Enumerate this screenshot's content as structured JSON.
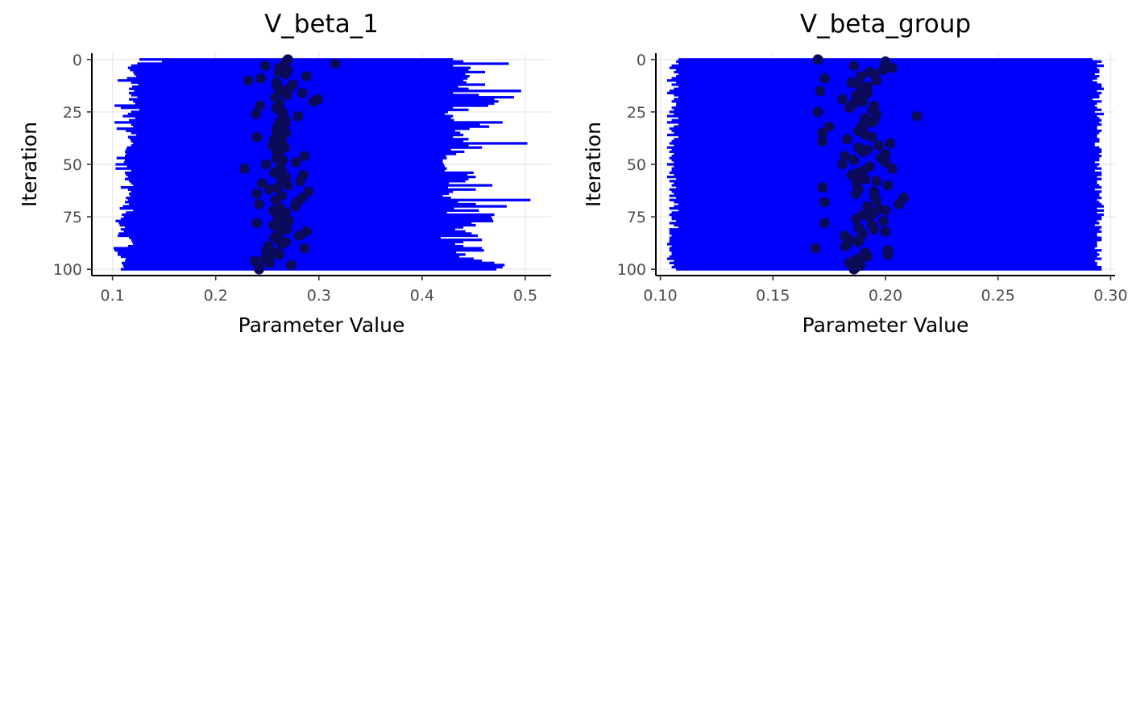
{
  "chart_data": [
    {
      "type": "scatter",
      "title": "V_beta_1",
      "xlabel": "Parameter Value",
      "ylabel": "Iteration",
      "xlim": [
        0.08,
        0.525
      ],
      "ylim": [
        -3,
        103
      ],
      "y_reversed": true,
      "x_ticks": [
        0.1,
        0.2,
        0.3,
        0.4,
        0.5
      ],
      "x_tick_labels": [
        "0.1",
        "0.2",
        "0.3",
        "0.4",
        "0.5"
      ],
      "y_ticks": [
        0,
        25,
        50,
        75,
        100
      ],
      "y_tick_labels": [
        "0",
        "25",
        "50",
        "75",
        "100"
      ],
      "grid": true,
      "interval_color": "#0000ff",
      "point_color": "#0b0b5a",
      "x": [
        0.27,
        0.268,
        0.316,
        0.248,
        0.262,
        0.27,
        0.261,
        0.268,
        0.288,
        0.244,
        0.232,
        0.259,
        0.275,
        0.26,
        0.271,
        0.264,
        0.284,
        0.269,
        0.258,
        0.299,
        0.295,
        0.262,
        0.243,
        0.259,
        0.261,
        0.265,
        0.239,
        0.28,
        0.265,
        0.268,
        0.262,
        0.267,
        0.26,
        0.264,
        0.259,
        0.268,
        0.265,
        0.24,
        0.257,
        0.264,
        0.26,
        0.255,
        0.267,
        0.263,
        0.259,
        0.26,
        0.286,
        0.259,
        0.265,
        0.278,
        0.249,
        0.263,
        0.228,
        0.264,
        0.257,
        0.285,
        0.268,
        0.264,
        0.282,
        0.245,
        0.27,
        0.26,
        0.252,
        0.29,
        0.24,
        0.264,
        0.284,
        0.258,
        0.279,
        0.242,
        0.277,
        0.263,
        0.256,
        0.268,
        0.263,
        0.26,
        0.262,
        0.271,
        0.24,
        0.256,
        0.262,
        0.269,
        0.288,
        0.261,
        0.281,
        0.257,
        0.261,
        0.268,
        0.264,
        0.251,
        0.286,
        0.249,
        0.258,
        0.262,
        0.253,
        0.248,
        0.238,
        0.252,
        0.273,
        0.242,
        0.242
      ],
      "low": [
        0.126,
        0.148,
        0.124,
        0.118,
        0.115,
        0.117,
        0.12,
        0.121,
        0.123,
        0.114,
        0.105,
        0.118,
        0.125,
        0.119,
        0.116,
        0.121,
        0.116,
        0.118,
        0.124,
        0.116,
        0.12,
        0.122,
        0.102,
        0.108,
        0.126,
        0.118,
        0.115,
        0.11,
        0.122,
        0.116,
        0.102,
        0.118,
        0.12,
        0.104,
        0.113,
        0.118,
        0.123,
        0.115,
        0.117,
        0.118,
        0.12,
        0.118,
        0.114,
        0.113,
        0.112,
        0.113,
        0.112,
        0.104,
        0.112,
        0.111,
        0.103,
        0.114,
        0.103,
        0.118,
        0.112,
        0.113,
        0.115,
        0.112,
        0.116,
        0.118,
        0.12,
        0.108,
        0.115,
        0.118,
        0.116,
        0.117,
        0.113,
        0.115,
        0.112,
        0.116,
        0.11,
        0.107,
        0.12,
        0.113,
        0.109,
        0.111,
        0.108,
        0.103,
        0.106,
        0.107,
        0.112,
        0.108,
        0.111,
        0.106,
        0.105,
        0.116,
        0.118,
        0.119,
        0.12,
        0.115,
        0.101,
        0.102,
        0.105,
        0.105,
        0.108,
        0.113,
        0.112,
        0.109,
        0.11,
        0.111,
        0.108
      ],
      "high": [
        0.43,
        0.44,
        0.484,
        0.43,
        0.447,
        0.445,
        0.461,
        0.442,
        0.446,
        0.444,
        0.44,
        0.443,
        0.461,
        0.435,
        0.445,
        0.496,
        0.43,
        0.455,
        0.489,
        0.47,
        0.474,
        0.47,
        0.464,
        0.43,
        0.445,
        0.425,
        0.422,
        0.43,
        0.428,
        0.431,
        0.478,
        0.456,
        0.465,
        0.446,
        0.432,
        0.437,
        0.44,
        0.43,
        0.445,
        0.44,
        0.502,
        0.445,
        0.458,
        0.428,
        0.441,
        0.433,
        0.423,
        0.424,
        0.42,
        0.42,
        0.421,
        0.422,
        0.424,
        0.422,
        0.45,
        0.444,
        0.452,
        0.445,
        0.442,
        0.426,
        0.468,
        0.425,
        0.452,
        0.43,
        0.426,
        0.42,
        0.428,
        0.505,
        0.435,
        0.452,
        0.482,
        0.431,
        0.455,
        0.424,
        0.47,
        0.467,
        0.468,
        0.469,
        0.448,
        0.452,
        0.44,
        0.432,
        0.442,
        0.448,
        0.454,
        0.418,
        0.458,
        0.44,
        0.432,
        0.44,
        0.458,
        0.46,
        0.433,
        0.442,
        0.436,
        0.45,
        0.458,
        0.47,
        0.48,
        0.478,
        0.472
      ]
    },
    {
      "type": "scatter",
      "title": "V_beta_group",
      "xlabel": "Parameter Value",
      "ylabel": "Iteration",
      "xlim": [
        0.098,
        0.302
      ],
      "ylim": [
        -3,
        103
      ],
      "y_reversed": true,
      "x_ticks": [
        0.1,
        0.15,
        0.2,
        0.25,
        0.3
      ],
      "x_tick_labels": [
        "0.10",
        "0.15",
        "0.20",
        "0.25",
        "0.30"
      ],
      "y_ticks": [
        0,
        25,
        50,
        75,
        100
      ],
      "y_tick_labels": [
        "0",
        "25",
        "50",
        "75",
        "100"
      ],
      "grid": true,
      "interval_color": "#0000ff",
      "point_color": "#0b0b5a",
      "x": [
        0.17,
        0.2,
        0.2,
        0.186,
        0.203,
        0.199,
        0.193,
        0.195,
        0.189,
        0.173,
        0.196,
        0.185,
        0.188,
        0.192,
        0.19,
        0.171,
        0.192,
        0.187,
        0.19,
        0.181,
        0.19,
        0.186,
        0.195,
        0.184,
        0.194,
        0.17,
        0.196,
        0.214,
        0.191,
        0.195,
        0.194,
        0.19,
        0.175,
        0.19,
        0.188,
        0.172,
        0.191,
        0.194,
        0.183,
        0.172,
        0.202,
        0.197,
        0.188,
        0.192,
        0.19,
        0.2,
        0.182,
        0.198,
        0.186,
        0.2,
        0.181,
        0.193,
        0.203,
        0.19,
        0.188,
        0.185,
        0.188,
        0.191,
        0.196,
        0.187,
        0.201,
        0.172,
        0.188,
        0.195,
        0.187,
        0.195,
        0.208,
        0.196,
        0.173,
        0.206,
        0.192,
        0.197,
        0.2,
        0.195,
        0.19,
        0.193,
        0.187,
        0.199,
        0.173,
        0.194,
        0.188,
        0.195,
        0.2,
        0.19,
        0.182,
        0.189,
        0.184,
        0.188,
        0.183,
        0.182,
        0.169,
        0.201,
        0.191,
        0.201,
        0.192,
        0.188,
        0.186,
        0.184,
        0.189,
        0.187,
        0.186
      ],
      "low": [
        0.108,
        0.107,
        0.108,
        0.105,
        0.104,
        0.107,
        0.106,
        0.108,
        0.107,
        0.105,
        0.103,
        0.107,
        0.105,
        0.108,
        0.106,
        0.104,
        0.103,
        0.106,
        0.108,
        0.106,
        0.105,
        0.107,
        0.107,
        0.105,
        0.106,
        0.104,
        0.106,
        0.103,
        0.108,
        0.105,
        0.103,
        0.108,
        0.106,
        0.104,
        0.105,
        0.106,
        0.103,
        0.108,
        0.106,
        0.105,
        0.104,
        0.106,
        0.103,
        0.105,
        0.104,
        0.106,
        0.105,
        0.104,
        0.105,
        0.106,
        0.103,
        0.106,
        0.105,
        0.105,
        0.104,
        0.106,
        0.103,
        0.107,
        0.104,
        0.106,
        0.105,
        0.107,
        0.104,
        0.105,
        0.106,
        0.104,
        0.107,
        0.104,
        0.106,
        0.108,
        0.106,
        0.104,
        0.108,
        0.105,
        0.104,
        0.105,
        0.105,
        0.107,
        0.104,
        0.106,
        0.108,
        0.104,
        0.104,
        0.104,
        0.105,
        0.104,
        0.104,
        0.104,
        0.103,
        0.105,
        0.104,
        0.104,
        0.105,
        0.105,
        0.104,
        0.103,
        0.106,
        0.104,
        0.106,
        0.105,
        0.107
      ],
      "high": [
        0.292,
        0.296,
        0.294,
        0.297,
        0.294,
        0.295,
        0.295,
        0.293,
        0.295,
        0.294,
        0.292,
        0.294,
        0.296,
        0.296,
        0.297,
        0.294,
        0.296,
        0.295,
        0.295,
        0.292,
        0.296,
        0.294,
        0.293,
        0.294,
        0.296,
        0.293,
        0.297,
        0.294,
        0.295,
        0.296,
        0.295,
        0.296,
        0.294,
        0.294,
        0.296,
        0.295,
        0.294,
        0.294,
        0.295,
        0.295,
        0.293,
        0.293,
        0.295,
        0.296,
        0.296,
        0.295,
        0.296,
        0.295,
        0.295,
        0.293,
        0.295,
        0.294,
        0.296,
        0.293,
        0.296,
        0.296,
        0.294,
        0.296,
        0.294,
        0.294,
        0.295,
        0.296,
        0.293,
        0.296,
        0.295,
        0.295,
        0.296,
        0.294,
        0.295,
        0.296,
        0.297,
        0.294,
        0.297,
        0.294,
        0.297,
        0.296,
        0.296,
        0.294,
        0.295,
        0.293,
        0.296,
        0.295,
        0.296,
        0.294,
        0.294,
        0.296,
        0.296,
        0.294,
        0.294,
        0.294,
        0.293,
        0.296,
        0.294,
        0.295,
        0.294,
        0.296,
        0.293,
        0.294,
        0.294,
        0.296,
        0.296
      ]
    }
  ]
}
